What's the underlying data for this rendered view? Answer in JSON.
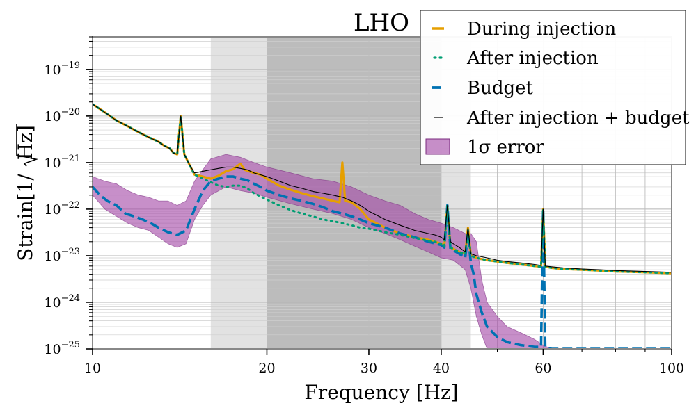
{
  "chart_data": {
    "type": "line",
    "title": "LHO",
    "xlabel": "Frequency [Hz]",
    "ylabel": "Strain[1/√Hz]",
    "ylabel_parts": {
      "prefix": "Strain[1/",
      "radicand": "Hz",
      "suffix": "]"
    },
    "x_scale": "log",
    "y_scale": "log",
    "xlim": [
      10,
      100
    ],
    "ylim": [
      1e-25,
      5e-19
    ],
    "x_ticks": [
      {
        "value": 10,
        "label": "10"
      },
      {
        "value": 20,
        "label": "20"
      },
      {
        "value": 30,
        "label": "30"
      },
      {
        "value": 40,
        "label": "40"
      },
      {
        "value": 60,
        "label": "60"
      },
      {
        "value": 100,
        "label": "100"
      }
    ],
    "y_ticks": [
      {
        "exp": -19,
        "label_base": "10",
        "label_exp": "−19"
      },
      {
        "exp": -20,
        "label_base": "10",
        "label_exp": "−20"
      },
      {
        "exp": -21,
        "label_base": "10",
        "label_exp": "−21"
      },
      {
        "exp": -22,
        "label_base": "10",
        "label_exp": "−22"
      },
      {
        "exp": -23,
        "label_base": "10",
        "label_exp": "−23"
      },
      {
        "exp": -24,
        "label_base": "10",
        "label_exp": "−24"
      },
      {
        "exp": -25,
        "label_base": "10",
        "label_exp": "−25"
      }
    ],
    "grid": true,
    "shaded_regions": [
      {
        "x0": 16,
        "x1": 45,
        "color": "#e2e2e2"
      },
      {
        "x0": 20,
        "x1": 40,
        "color": "#bcbcbc"
      }
    ],
    "colors": {
      "during": "#e69f00",
      "after": "#009e73",
      "budget": "#0072b2",
      "sum": "#000000",
      "error_fill": "#a54ba8",
      "error_edge": "#7a2a7e"
    },
    "legend": {
      "placement": "top-right",
      "entries": [
        {
          "label": "During injection",
          "style": "solid",
          "color": "#e69f00"
        },
        {
          "label": "After injection",
          "style": "dotted",
          "color": "#009e73"
        },
        {
          "label": "Budget",
          "style": "dashed",
          "color": "#0072b2"
        },
        {
          "label": "After injection + budget",
          "style": "thin",
          "color": "#000000"
        },
        {
          "label": "1σ error",
          "style": "patch",
          "color": "#a54ba8"
        }
      ]
    },
    "series": [
      {
        "name": "During injection",
        "x": [
          10,
          10.5,
          11,
          11.5,
          12,
          12.5,
          13,
          13.3,
          13.6,
          13.8,
          14,
          14.2,
          14.4,
          14.7,
          15,
          15.5,
          16,
          16.5,
          17,
          17.5,
          18,
          18.3,
          18.6,
          19,
          19.5,
          20,
          21,
          22,
          23,
          24,
          25,
          26,
          26.7,
          27,
          27.3,
          28,
          29,
          30,
          32,
          34,
          36,
          38,
          39,
          40,
          40.5,
          41,
          41.5,
          42,
          43,
          44,
          44.5,
          45,
          46,
          48,
          50,
          52,
          55,
          58,
          59.5,
          60,
          60.5,
          62,
          65,
          70,
          75,
          80,
          85,
          90,
          95,
          100
        ],
        "y": [
          1.8e-20,
          1.2e-20,
          8e-21,
          6e-21,
          4.5e-21,
          3.5e-21,
          2.8e-21,
          2.3e-21,
          2e-21,
          1.6e-21,
          1.5e-21,
          1e-20,
          1.5e-21,
          9e-22,
          5.5e-22,
          5e-22,
          4.5e-22,
          5.2e-22,
          6.5e-22,
          7.2e-22,
          9.5e-22,
          7e-22,
          6.5e-22,
          6e-22,
          5.5e-22,
          4.5e-22,
          3.2e-22,
          2.6e-22,
          2.2e-22,
          1.9e-22,
          1.7e-22,
          1.5e-22,
          1.4e-22,
          1e-21,
          1.5e-22,
          1.4e-22,
          1e-22,
          6e-23,
          4e-23,
          3e-23,
          2.5e-23,
          2.2e-23,
          2e-23,
          1.8e-23,
          1.6e-23,
          1.2e-22,
          1.5e-23,
          1.4e-23,
          1.2e-23,
          1.1e-23,
          4e-23,
          1e-23,
          9e-24,
          8e-24,
          7.5e-24,
          7e-24,
          6.5e-24,
          6e-24,
          5.8e-24,
          1e-22,
          5.8e-24,
          5.5e-24,
          5.2e-24,
          5e-24,
          4.8e-24,
          4.6e-24,
          4.5e-24,
          4.4e-24,
          4.3e-24,
          4.2e-24
        ]
      },
      {
        "name": "After injection",
        "x": [
          10,
          10.5,
          11,
          11.5,
          12,
          12.5,
          13,
          13.3,
          13.6,
          13.8,
          14,
          14.2,
          14.4,
          14.7,
          15,
          15.5,
          16,
          16.5,
          17,
          17.5,
          18,
          18.5,
          19,
          20,
          21,
          22,
          23,
          24,
          25,
          26,
          27,
          28,
          29,
          30,
          32,
          34,
          36,
          38,
          39,
          40,
          40.5,
          41,
          41.5,
          42,
          43,
          44,
          44.5,
          45,
          46,
          48,
          50,
          52,
          55,
          58,
          59.5,
          60,
          60.5,
          62,
          65,
          70,
          75,
          80,
          85,
          90,
          95,
          100
        ],
        "y": [
          1.8e-20,
          1.2e-20,
          8e-21,
          6e-21,
          4.5e-21,
          3.5e-21,
          2.8e-21,
          2.3e-21,
          2e-21,
          1.6e-21,
          1.5e-21,
          1e-20,
          1.5e-21,
          9e-22,
          5.5e-22,
          4.5e-22,
          3.8e-22,
          3.2e-22,
          3e-22,
          3.2e-22,
          3.2e-22,
          2.8e-22,
          2.2e-22,
          1.6e-22,
          1.2e-22,
          9.5e-23,
          8e-23,
          7e-23,
          6e-23,
          5.5e-23,
          5e-23,
          4.5e-23,
          4e-23,
          3.8e-23,
          3.2e-23,
          2.8e-23,
          2.4e-23,
          2.1e-23,
          2e-23,
          1.8e-23,
          1.6e-23,
          1.2e-22,
          1.5e-23,
          1.4e-23,
          1.2e-23,
          1.1e-23,
          3.5e-23,
          1e-23,
          9e-24,
          8e-24,
          7.5e-24,
          7e-24,
          6.5e-24,
          6e-24,
          5.8e-24,
          1e-22,
          5.8e-24,
          5.5e-24,
          5.2e-24,
          5e-24,
          4.8e-24,
          4.6e-24,
          4.5e-24,
          4.4e-24,
          4.3e-24,
          4.2e-24
        ]
      },
      {
        "name": "Budget",
        "x": [
          10,
          10.3,
          10.6,
          11,
          11.4,
          11.8,
          12.2,
          12.6,
          13,
          13.5,
          14,
          14.5,
          15,
          15.5,
          16,
          16.5,
          17,
          17.5,
          18,
          18.5,
          19,
          19.5,
          20,
          21,
          22,
          23,
          24,
          25,
          26,
          27,
          28,
          29,
          30,
          32,
          34,
          36,
          38,
          40,
          40.5,
          41,
          41.5,
          42,
          43,
          44,
          44.5,
          45,
          45.5,
          46,
          47,
          48,
          50,
          52,
          55,
          58,
          59.5,
          60,
          60.5,
          62,
          65,
          70,
          75,
          80,
          85,
          88,
          90,
          92,
          95,
          100
        ],
        "y": [
          3e-22,
          2e-22,
          1.5e-22,
          1.2e-22,
          8e-23,
          7e-23,
          6e-23,
          5e-23,
          4e-23,
          3.2e-23,
          2.8e-23,
          3.5e-23,
          1e-22,
          2.5e-22,
          4e-22,
          4.5e-22,
          5e-22,
          5e-22,
          4.5e-22,
          4.2e-22,
          3.5e-22,
          3e-22,
          2.5e-22,
          2e-22,
          1.7e-22,
          1.5e-22,
          1.3e-22,
          1.1e-22,
          9e-23,
          8e-23,
          7e-23,
          6e-23,
          5e-23,
          4e-23,
          3e-23,
          2.5e-23,
          2e-23,
          1.7e-23,
          1.5e-23,
          1.2e-22,
          1.4e-23,
          1.3e-23,
          1.1e-23,
          9e-24,
          3e-23,
          7e-24,
          4e-24,
          1.5e-24,
          6e-25,
          3e-25,
          1.8e-25,
          1.4e-25,
          1.2e-25,
          1.1e-25,
          1.1e-25,
          1e-22,
          1.1e-25,
          1e-25,
          1e-25,
          1e-25,
          1e-25,
          1e-25,
          1e-25,
          1e-25,
          1e-25,
          1e-25,
          1e-25,
          1e-25
        ]
      },
      {
        "name": "After injection + budget",
        "x": [
          10,
          10.5,
          11,
          11.5,
          12,
          12.5,
          13,
          13.3,
          13.6,
          13.8,
          14,
          14.2,
          14.4,
          14.7,
          15,
          15.5,
          16,
          16.5,
          17,
          17.5,
          18,
          18.5,
          19,
          20,
          21,
          22,
          23,
          24,
          25,
          26,
          27,
          28,
          29,
          30,
          32,
          34,
          36,
          38,
          39,
          40,
          40.5,
          41,
          41.5,
          42,
          43,
          44,
          44.5,
          45,
          46,
          48,
          50,
          52,
          55,
          58,
          59.5,
          60,
          60.5,
          62,
          65,
          70,
          75,
          80,
          85,
          90,
          95,
          100
        ],
        "y": [
          1.8e-20,
          1.2e-20,
          8e-21,
          6e-21,
          4.5e-21,
          3.5e-21,
          2.8e-21,
          2.3e-21,
          2e-21,
          1.6e-21,
          1.5e-21,
          1e-20,
          1.5e-21,
          9e-22,
          6e-22,
          6.5e-22,
          7e-22,
          7.5e-22,
          8e-22,
          8e-22,
          7.5e-22,
          7e-22,
          6e-22,
          5e-22,
          4e-22,
          3.2e-22,
          2.8e-22,
          2.4e-22,
          2.2e-22,
          2e-22,
          1.8e-22,
          1.5e-22,
          1.2e-22,
          9e-23,
          6e-23,
          4.5e-23,
          3.5e-23,
          3e-23,
          2.8e-23,
          2.5e-23,
          2.2e-23,
          1.2e-22,
          2e-23,
          1.8e-23,
          1.5e-23,
          1.2e-23,
          4e-23,
          1.1e-23,
          1e-23,
          9e-24,
          8e-24,
          7.5e-24,
          7e-24,
          6.5e-24,
          6.2e-24,
          1e-22,
          6e-24,
          5.8e-24,
          5.5e-24,
          5.2e-24,
          5e-24,
          4.8e-24,
          4.7e-24,
          4.6e-24,
          4.5e-24,
          4.4e-24
        ]
      }
    ],
    "error_band": {
      "name": "1σ error",
      "x": [
        10,
        10.5,
        11,
        11.5,
        12,
        12.5,
        13,
        13.5,
        14,
        14.5,
        15,
        15.5,
        16,
        17,
        18,
        19,
        20,
        22,
        24,
        26,
        28,
        30,
        32,
        34,
        36,
        38,
        40,
        42,
        44,
        45,
        46,
        47,
        48,
        50,
        52,
        55,
        58,
        60,
        62,
        65,
        70,
        75,
        80,
        85,
        90,
        95,
        100
      ],
      "upper": [
        5e-22,
        4e-22,
        3.5e-22,
        2.5e-22,
        2e-22,
        1.8e-22,
        1.5e-22,
        1.5e-22,
        1.2e-22,
        1.5e-22,
        4e-22,
        7e-22,
        1.2e-21,
        1.5e-21,
        1.3e-21,
        1e-21,
        8e-22,
        6e-22,
        4.5e-22,
        4e-22,
        3e-22,
        2e-22,
        1.5e-22,
        1.2e-22,
        8e-23,
        6e-23,
        5e-23,
        4e-23,
        3e-23,
        3e-23,
        2e-23,
        3e-24,
        1e-24,
        5e-25,
        3e-25,
        2.2e-25,
        1.6e-25,
        1.2e-25,
        1e-25,
        1e-25,
        1e-25,
        1e-25,
        1e-25,
        1e-25,
        1e-25,
        1e-25,
        1e-25
      ],
      "lower": [
        2e-22,
        1e-22,
        7e-23,
        5e-23,
        4e-23,
        3.5e-23,
        2.5e-23,
        1.8e-23,
        1.5e-23,
        1.8e-23,
        6e-23,
        1.2e-22,
        2e-22,
        3e-22,
        2.5e-22,
        2.2e-22,
        1.8e-22,
        1.3e-22,
        1e-22,
        8e-23,
        6e-23,
        4e-23,
        3e-23,
        2.2e-23,
        1.6e-23,
        1.2e-23,
        9e-24,
        8e-24,
        5e-24,
        2e-24,
        5e-25,
        2e-25,
        1e-25,
        1e-25,
        1e-25,
        1e-25,
        1e-25,
        1e-25,
        1e-25,
        1e-25,
        1e-25,
        1e-25,
        1e-25,
        1e-25,
        1e-25,
        1e-25,
        1e-25
      ]
    }
  }
}
